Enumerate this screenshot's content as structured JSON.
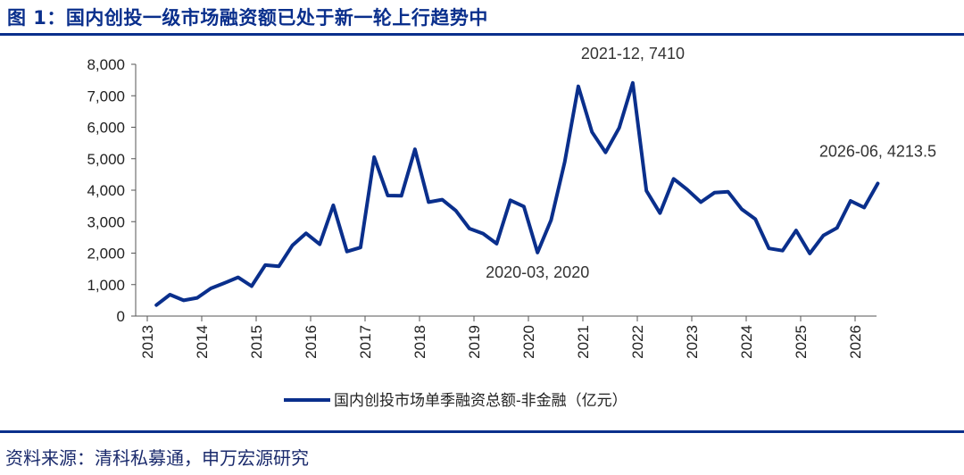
{
  "figure": {
    "title": "图 1：国内创投一级市场融资额已处于新一轮上行趋势中",
    "source": "资料来源：清科私募通，申万宏源研究"
  },
  "colors": {
    "line": "#0a2f8c",
    "title": "#0a2f8c",
    "axis": "#555555",
    "text": "#222222"
  },
  "chart_data": {
    "type": "line",
    "title": "",
    "xlabel": "",
    "ylabel": "",
    "ylim": [
      0,
      8000
    ],
    "yticks": [
      "0",
      "1,000",
      "2,000",
      "3,000",
      "4,000",
      "5,000",
      "6,000",
      "7,000",
      "8,000"
    ],
    "xticks": [
      "2013",
      "2014",
      "2015",
      "2016",
      "2017",
      "2018",
      "2019",
      "2020",
      "2021",
      "2022",
      "2023",
      "2024",
      "2025",
      "2026"
    ],
    "grid": false,
    "legend_position": "bottom",
    "series": [
      {
        "name": "国内创投市场单季融资总额-非金融（亿元）",
        "x": [
          "2013-03",
          "2013-06",
          "2013-09",
          "2013-12",
          "2014-03",
          "2014-06",
          "2014-09",
          "2014-12",
          "2015-03",
          "2015-06",
          "2015-09",
          "2015-12",
          "2016-03",
          "2016-06",
          "2016-09",
          "2016-12",
          "2017-03",
          "2017-06",
          "2017-09",
          "2017-12",
          "2018-03",
          "2018-06",
          "2018-09",
          "2018-12",
          "2019-03",
          "2019-06",
          "2019-09",
          "2019-12",
          "2020-03",
          "2020-06",
          "2020-09",
          "2020-12",
          "2021-03",
          "2021-06",
          "2021-09",
          "2021-12",
          "2022-03",
          "2022-06",
          "2022-09",
          "2022-12",
          "2023-03",
          "2023-06",
          "2023-09",
          "2023-12",
          "2024-03",
          "2024-06",
          "2024-09",
          "2024-12",
          "2025-03",
          "2025-06",
          "2025-09",
          "2025-12",
          "2026-03",
          "2026-06"
        ],
        "values": [
          350,
          680,
          500,
          580,
          880,
          1050,
          1230,
          950,
          1620,
          1580,
          2250,
          2630,
          2280,
          3520,
          2050,
          2180,
          5050,
          3830,
          3820,
          5300,
          3620,
          3700,
          3350,
          2780,
          2620,
          2300,
          3680,
          3480,
          2020,
          3050,
          4900,
          7300,
          5850,
          5200,
          5980,
          7410,
          3980,
          3270,
          4360,
          4020,
          3620,
          3920,
          3950,
          3400,
          3080,
          2150,
          2080,
          2720,
          1990,
          2560,
          2800,
          3660,
          3450,
          4213.5
        ]
      }
    ],
    "annotations": [
      {
        "x": "2021-12",
        "text": "2021-12, 7410"
      },
      {
        "x": "2020-03",
        "text": "2020-03, 2020"
      },
      {
        "x": "2026-06",
        "text": "2026-06, 4213.5"
      }
    ]
  }
}
